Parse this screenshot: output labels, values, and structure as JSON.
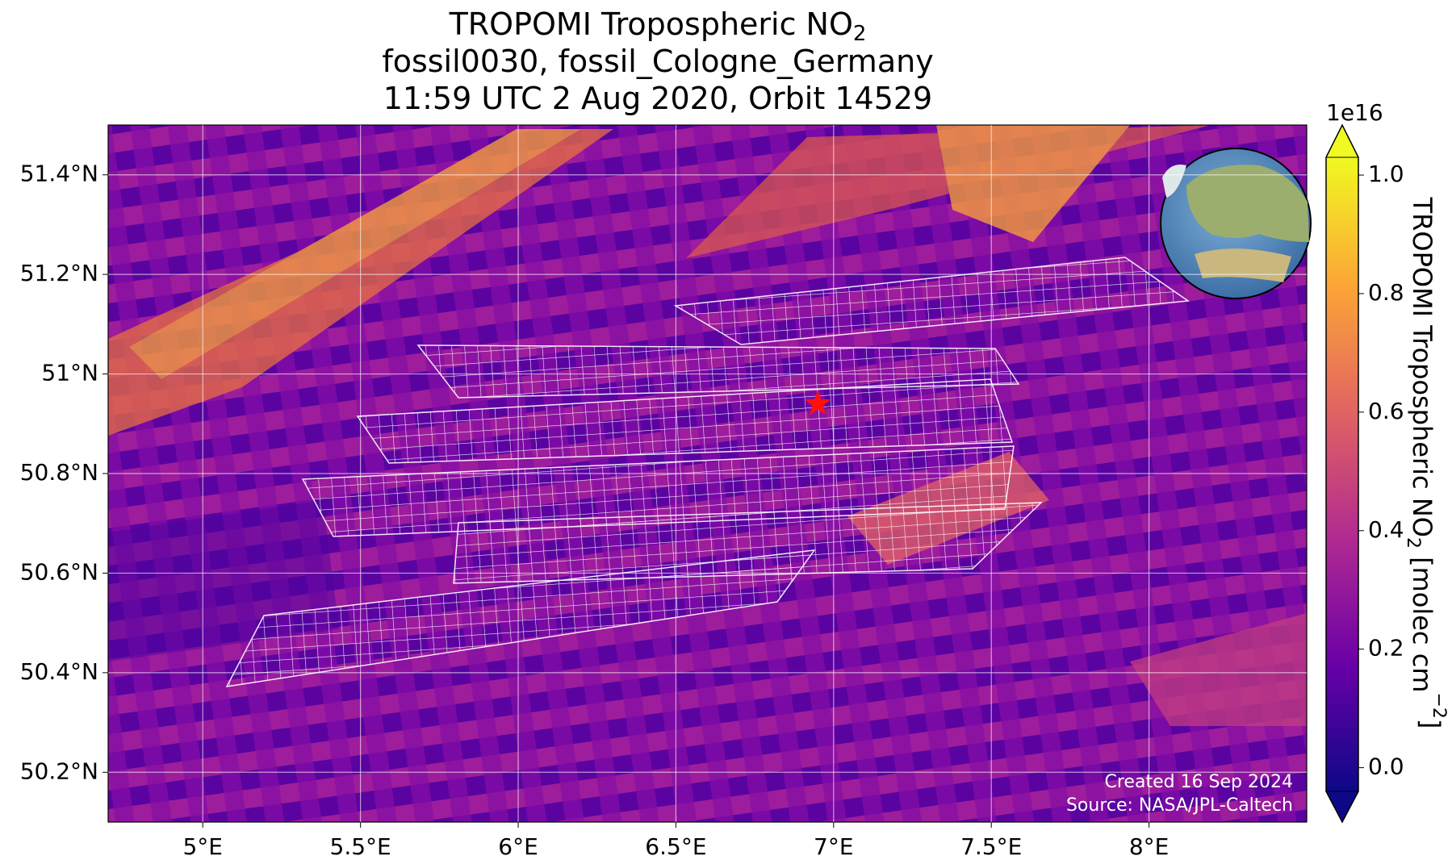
{
  "chart_data": {
    "type": "map",
    "title": [
      {
        "text": "TROPOMI Tropospheric NO",
        "sub": "2"
      },
      {
        "text": "fossil0030, fossil_Cologne_Germany"
      },
      {
        "text": "11:59 UTC 2 Aug 2020, Orbit 14529"
      }
    ],
    "xlim": [
      4.7,
      8.5
    ],
    "ylim": [
      50.1,
      51.5
    ],
    "xticks": [
      {
        "value": 5,
        "label": "5°E"
      },
      {
        "value": 5.5,
        "label": "5.5°E"
      },
      {
        "value": 6,
        "label": "6°E"
      },
      {
        "value": 6.5,
        "label": "6.5°E"
      },
      {
        "value": 7,
        "label": "7°E"
      },
      {
        "value": 7.5,
        "label": "7.5°E"
      },
      {
        "value": 8,
        "label": "8°E"
      }
    ],
    "yticks": [
      {
        "value": 50.2,
        "label": "50.2°N"
      },
      {
        "value": 50.4,
        "label": "50.4°N"
      },
      {
        "value": 50.6,
        "label": "50.6°N"
      },
      {
        "value": 50.8,
        "label": "50.8°N"
      },
      {
        "value": 51,
        "label": "51°N"
      },
      {
        "value": 51.2,
        "label": "51.2°N"
      },
      {
        "value": 51.4,
        "label": "51.4°N"
      }
    ],
    "grid": true,
    "site": {
      "lon": 6.95,
      "lat": 50.94,
      "color": "#ff1010"
    },
    "colorbar": {
      "label": [
        {
          "text": "TROPOMI Tropospheric NO"
        },
        {
          "text": "2",
          "shift": "sub"
        },
        {
          "text": " [molec cm"
        },
        {
          "text": "−2",
          "shift": "super"
        },
        {
          "text": "]"
        }
      ],
      "offset": "1e16",
      "lim": [
        -0.04,
        1.03
      ],
      "ticks": [
        {
          "value": 0,
          "label": "0.0"
        },
        0.2,
        0.4,
        0.6,
        0.8,
        {
          "value": 1,
          "label": "1.0"
        }
      ],
      "colormap": [
        "#0d0887",
        "#6a00a8",
        "#b12a90",
        "#e16462",
        "#fca636",
        "#f0f921"
      ]
    },
    "footer": [
      "Created 16 Sep 2024",
      "Source: NASA/JPL-Caltech"
    ]
  }
}
